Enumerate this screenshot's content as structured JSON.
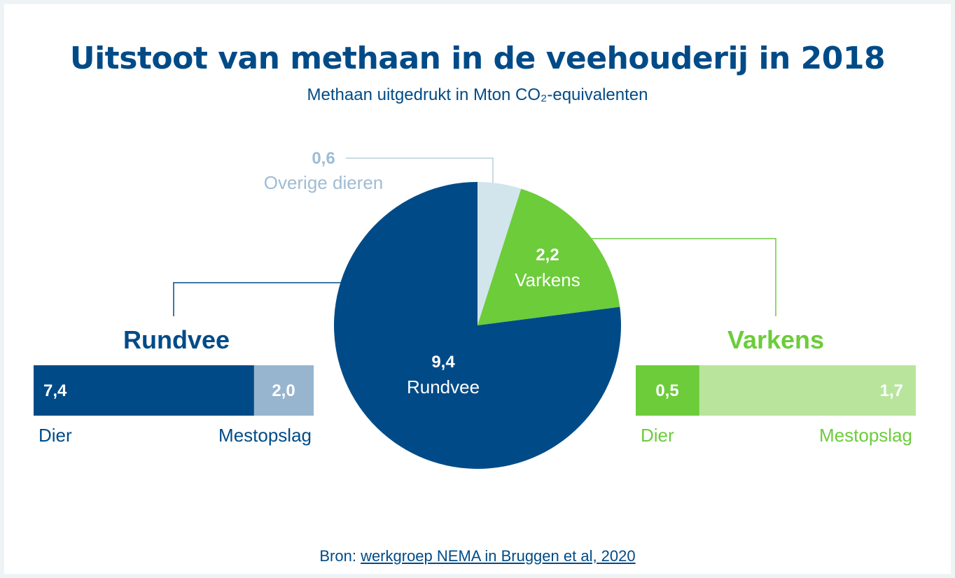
{
  "title": "Uitstoot van methaan in de veehouderij in 2018",
  "subtitle": "Methaan uitgedrukt in Mton CO₂-equivalenten",
  "source": {
    "prefix": "Bron: ",
    "link_text": "werkgroep NEMA in Bruggen et al, 2020"
  },
  "colors": {
    "rundvee": "#004b87",
    "rundvee_light": "#97b5cf",
    "varkens": "#6ccc3a",
    "varkens_light": "#b8e59b",
    "overig": "#d2e5ec",
    "overig_text": "#9fbcd3"
  },
  "chart_data": [
    {
      "type": "pie",
      "slices": [
        {
          "label": "Overige dieren",
          "value_text": "0,6",
          "value": 0.6
        },
        {
          "label": "Varkens",
          "value_text": "2,2",
          "value": 2.2
        },
        {
          "label": "Rundvee",
          "value_text": "9,4",
          "value": 9.4
        }
      ]
    },
    {
      "type": "bar",
      "title": "Rundvee",
      "segments": [
        {
          "label": "Dier",
          "value_text": "7,4",
          "value": 7.4
        },
        {
          "label": "Mestopslag",
          "value_text": "2,0",
          "value": 2.0
        }
      ]
    },
    {
      "type": "bar",
      "title": "Varkens",
      "segments": [
        {
          "label": "Dier",
          "value_text": "0,5",
          "value": 0.5
        },
        {
          "label": "Mestopslag",
          "value_text": "1,7",
          "value": 1.7
        }
      ]
    }
  ]
}
